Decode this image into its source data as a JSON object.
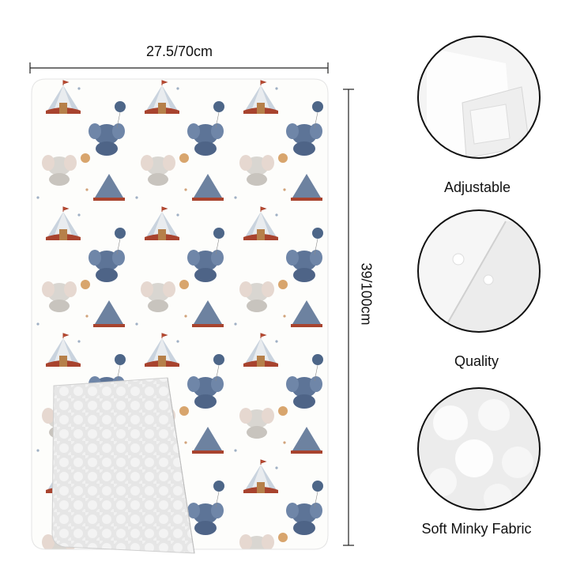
{
  "dimensions": {
    "width": "27.5/70cm",
    "length": "39/100cm"
  },
  "features": [
    {
      "label": "Adjustable"
    },
    {
      "label": "Quality"
    },
    {
      "label": "Soft Minky Fabric"
    }
  ]
}
